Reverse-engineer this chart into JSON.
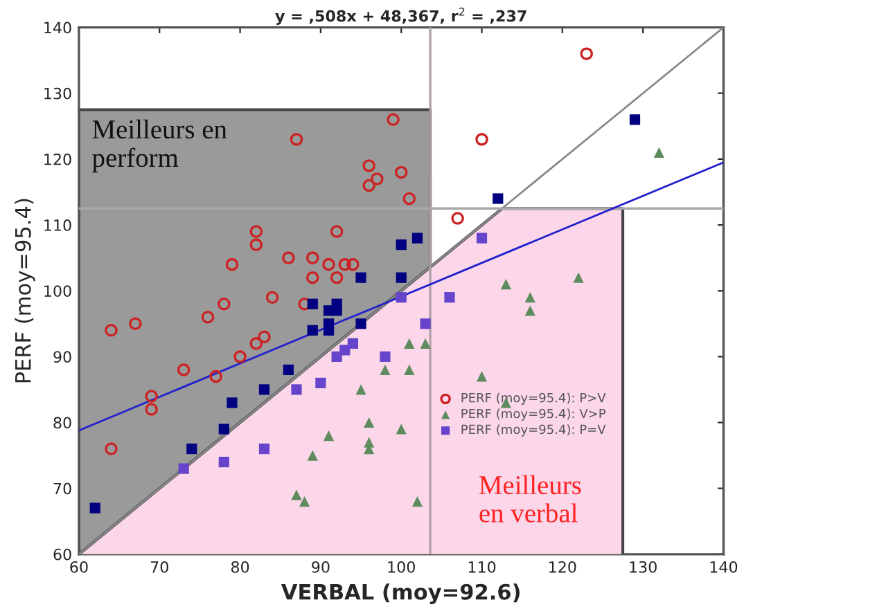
{
  "chart_data": {
    "type": "scatter",
    "title": "y = ,508x + 48,367, r$^{2}$ = ,237",
    "xlabel": "VERBAL (moy=92.6)",
    "ylabel": "PERF (moy=95.4)",
    "xlim": [
      60,
      140
    ],
    "ylim": [
      60,
      140
    ],
    "xticks": [
      60,
      70,
      80,
      90,
      100,
      110,
      120,
      130,
      140
    ],
    "yticks": [
      60,
      70,
      80,
      90,
      100,
      110,
      120,
      130,
      140
    ],
    "grid": false,
    "legend": "right",
    "annotations": [
      "Meilleurs en\nperform",
      "Meilleurs\nen verbal"
    ],
    "ref_lines": [
      {
        "axis": "x",
        "value": 103.6,
        "color": "#b0a0a8"
      },
      {
        "axis": "y",
        "value": 112.5,
        "color": "#a8a8a8"
      }
    ],
    "series": [
      {
        "type": "area",
        "color": "#9a9a9a",
        "x": [
          60,
          103.6
        ],
        "values": [
          127.5,
          127.5
        ]
      },
      {
        "type": "area",
        "color": "#fcd6e9",
        "x": [
          60,
          112.5,
          127.5
        ],
        "values": [
          60,
          112.5,
          112.5
        ]
      },
      {
        "type": "line",
        "color": "#888888",
        "x": [
          60,
          140
        ],
        "values": [
          60,
          140
        ]
      },
      {
        "type": "line",
        "color": "#2222cc",
        "x": [
          60,
          140
        ],
        "values": [
          78.8,
          119.5
        ]
      },
      {
        "name": "PERF (moy=95.4): P>V",
        "marker": "circle",
        "color": "#cc2222",
        "x": [
          99,
          87,
          96,
          100,
          97,
          96,
          101,
          82,
          92,
          82,
          86,
          89,
          79,
          91,
          93,
          94,
          89,
          92,
          123,
          110,
          107,
          84,
          78,
          88,
          67,
          76,
          64,
          82,
          83,
          80,
          73,
          77,
          69,
          69,
          64
        ],
        "values": [
          126,
          123,
          119,
          118,
          117,
          116,
          114,
          109,
          109,
          107,
          105,
          105,
          104,
          104,
          104,
          104,
          102,
          102,
          136,
          123,
          111,
          99,
          98,
          98,
          95,
          96,
          94,
          92,
          93,
          90,
          88,
          87,
          84,
          82,
          76
        ]
      },
      {
        "name": "PERF (moy=95.4): V>P",
        "marker": "triangle",
        "color": "#5e8c5e",
        "x": [
          132,
          122,
          113,
          116,
          116,
          101,
          103,
          101,
          110,
          113,
          100,
          102,
          98,
          95,
          96,
          91,
          96,
          96,
          89,
          87,
          88
        ],
        "values": [
          121,
          102,
          101,
          99,
          97,
          92,
          92,
          88,
          87,
          83,
          79,
          68,
          88,
          85,
          80,
          78,
          77,
          76,
          75,
          69,
          68
        ]
      },
      {
        "name": "PERF (moy=95.4): P=V",
        "marker": "square",
        "color": "#6644cc",
        "x": [
          100,
          94,
          93,
          92,
          98,
          90,
          87,
          83,
          78,
          73,
          106,
          103,
          110
        ],
        "values": [
          99,
          92,
          91,
          90,
          90,
          86,
          85,
          76,
          74,
          73,
          99,
          95,
          108
        ]
      },
      {
        "marker": "square",
        "color": "#000080",
        "x": [
          100,
          102,
          100,
          112,
          129,
          95,
          89,
          91,
          92,
          92,
          91,
          91,
          89,
          95,
          86,
          83,
          79,
          78,
          74,
          62
        ],
        "values": [
          107,
          108,
          102,
          114,
          126,
          102,
          98,
          97,
          98,
          97,
          95,
          94,
          94,
          95,
          88,
          85,
          83,
          79,
          76,
          67
        ]
      }
    ]
  }
}
